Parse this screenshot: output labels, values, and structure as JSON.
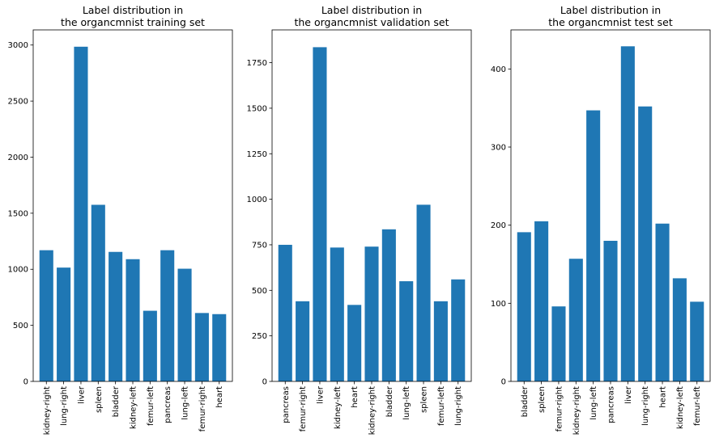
{
  "chart_data": [
    {
      "type": "bar",
      "title_lines": [
        "Label distribution in",
        "the organcmnist training set"
      ],
      "categories": [
        "kidney-right",
        "lung-right",
        "liver",
        "spleen",
        "bladder",
        "kidney-left",
        "femur-left",
        "pancreas",
        "lung-left",
        "femur-right",
        "heart"
      ],
      "values": [
        1170,
        1015,
        2985,
        1575,
        1155,
        1090,
        630,
        1170,
        1005,
        610,
        600
      ],
      "yticks": [
        0,
        500,
        1000,
        1500,
        2000,
        2500,
        3000
      ],
      "ylim": [
        0,
        3135
      ],
      "bar_color": "#1f77b4"
    },
    {
      "type": "bar",
      "title_lines": [
        "Label distribution in",
        "the organcmnist validation set"
      ],
      "categories": [
        "pancreas",
        "femur-right",
        "liver",
        "kidney-left",
        "heart",
        "kidney-right",
        "bladder",
        "lung-left",
        "spleen",
        "femur-left",
        "lung-right"
      ],
      "values": [
        750,
        440,
        1835,
        735,
        420,
        740,
        835,
        550,
        970,
        440,
        560
      ],
      "yticks": [
        0,
        250,
        500,
        750,
        1000,
        1250,
        1500,
        1750
      ],
      "ylim": [
        0,
        1930
      ],
      "bar_color": "#1f77b4"
    },
    {
      "type": "bar",
      "title_lines": [
        "Label distribution in",
        "the organcmnist test set"
      ],
      "categories": [
        "bladder",
        "spleen",
        "femur-right",
        "kidney-right",
        "lung-left",
        "pancreas",
        "liver",
        "lung-right",
        "heart",
        "kidney-left",
        "femur-left"
      ],
      "values": [
        191,
        205,
        96,
        157,
        347,
        180,
        429,
        352,
        202,
        132,
        102
      ],
      "yticks": [
        0,
        100,
        200,
        300,
        400
      ],
      "ylim": [
        0,
        450
      ],
      "bar_color": "#1f77b4"
    }
  ]
}
